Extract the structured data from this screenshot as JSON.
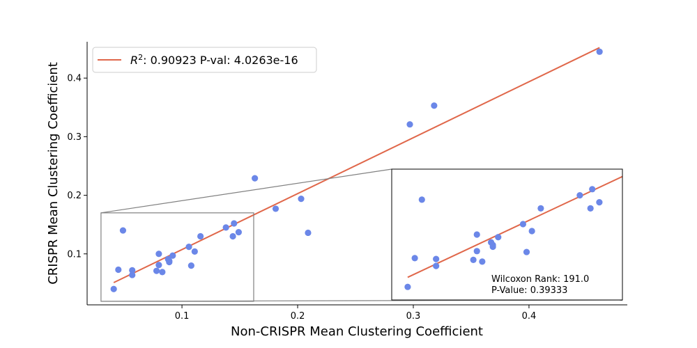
{
  "chart_data": {
    "type": "scatter",
    "xlabel": "Non-CRISPR Mean Clustering Coefficient",
    "ylabel": "CRISPR Mean Clustering Coefficient",
    "xlim": [
      0.018,
      0.485
    ],
    "ylim": [
      0.013,
      0.462
    ],
    "xticks": [
      0.1,
      0.2,
      0.3,
      0.4
    ],
    "yticks": [
      0.1,
      0.2,
      0.3,
      0.4
    ],
    "xtick_labels": [
      "0.1",
      "0.2",
      "0.3",
      "0.4"
    ],
    "ytick_labels": [
      "0.1",
      "0.2",
      "0.3",
      "0.4"
    ],
    "point_color": "#6b87e8",
    "line_color": "#e0674a",
    "points": [
      {
        "x": 0.041,
        "y": 0.04
      },
      {
        "x": 0.045,
        "y": 0.073
      },
      {
        "x": 0.049,
        "y": 0.14
      },
      {
        "x": 0.057,
        "y": 0.072
      },
      {
        "x": 0.057,
        "y": 0.064
      },
      {
        "x": 0.078,
        "y": 0.071
      },
      {
        "x": 0.08,
        "y": 0.1
      },
      {
        "x": 0.08,
        "y": 0.081
      },
      {
        "x": 0.083,
        "y": 0.069
      },
      {
        "x": 0.088,
        "y": 0.091
      },
      {
        "x": 0.089,
        "y": 0.086
      },
      {
        "x": 0.089,
        "y": 0.088
      },
      {
        "x": 0.092,
        "y": 0.097
      },
      {
        "x": 0.106,
        "y": 0.112
      },
      {
        "x": 0.108,
        "y": 0.08
      },
      {
        "x": 0.111,
        "y": 0.104
      },
      {
        "x": 0.116,
        "y": 0.13
      },
      {
        "x": 0.138,
        "y": 0.145
      },
      {
        "x": 0.144,
        "y": 0.13
      },
      {
        "x": 0.145,
        "y": 0.152
      },
      {
        "x": 0.149,
        "y": 0.137
      },
      {
        "x": 0.163,
        "y": 0.229
      },
      {
        "x": 0.181,
        "y": 0.177
      },
      {
        "x": 0.203,
        "y": 0.194
      },
      {
        "x": 0.209,
        "y": 0.136
      },
      {
        "x": 0.297,
        "y": 0.321
      },
      {
        "x": 0.318,
        "y": 0.353
      },
      {
        "x": 0.461,
        "y": 0.445
      }
    ],
    "fit_line": {
      "x": [
        0.041,
        0.461
      ],
      "y": [
        0.051,
        0.452
      ]
    },
    "legend": {
      "placement": "top-left",
      "entries": [
        {
          "prefix": "R",
          "superscript": "2",
          "label": ": 0.90923  P-val: 4.0263e-16"
        }
      ]
    },
    "inset": {
      "source_region": {
        "xlim": [
          0.03,
          0.162
        ],
        "ylim": [
          0.019,
          0.17
        ]
      },
      "xlim": [
        0.032,
        0.162
      ],
      "ylim": [
        0.025,
        0.175
      ],
      "annotation": {
        "line1": "Wilcoxon Rank: 191.0",
        "line2": "P-Value: 0.39333"
      }
    }
  }
}
